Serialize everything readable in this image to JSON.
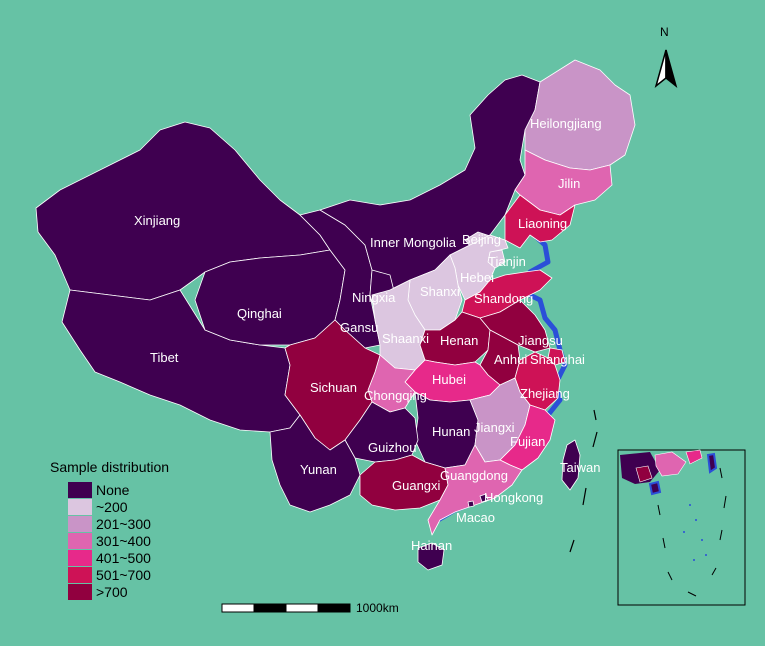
{
  "map": {
    "legend": {
      "title": "Sample distribution",
      "classes": [
        {
          "label": "None",
          "color": "#3f0050"
        },
        {
          "label": "~200",
          "color": "#dcc6e0"
        },
        {
          "label": "201~300",
          "color": "#c994c7"
        },
        {
          "label": "301~400",
          "color": "#df65b0"
        },
        {
          "label": "401~500",
          "color": "#e7298a"
        },
        {
          "label": "501~700",
          "color": "#ce1256"
        },
        {
          "label": ">700",
          "color": "#91003f"
        }
      ]
    },
    "scale_bar": {
      "label": "1000km"
    },
    "north_arrow": {
      "label": "N"
    },
    "coast_color": "#2b4fd8",
    "provinces": [
      {
        "name": "Xinjiang",
        "class": "None"
      },
      {
        "name": "Tibet",
        "class": "None"
      },
      {
        "name": "Qinghai",
        "class": "None"
      },
      {
        "name": "Gansu",
        "class": "None"
      },
      {
        "name": "Inner Mongolia",
        "class": "None"
      },
      {
        "name": "Ningxia",
        "class": "None"
      },
      {
        "name": "Heilongjiang",
        "class": "201~300"
      },
      {
        "name": "Jilin",
        "class": "301~400"
      },
      {
        "name": "Liaoning",
        "class": "501~700"
      },
      {
        "name": "Beijing",
        "class": "~200"
      },
      {
        "name": "Tianjin",
        "class": "~200"
      },
      {
        "name": "Hebei",
        "class": "~200"
      },
      {
        "name": "Shanxi",
        "class": "~200"
      },
      {
        "name": "Shandong",
        "class": "501~700"
      },
      {
        "name": "Shaanxi",
        "class": "~200"
      },
      {
        "name": "Henan",
        "class": ">700"
      },
      {
        "name": "Jiangsu",
        "class": ">700"
      },
      {
        "name": "Anhui",
        "class": ">700"
      },
      {
        "name": "Shanghai",
        "class": "501~700"
      },
      {
        "name": "Hubei",
        "class": "401~500"
      },
      {
        "name": "Chongqing",
        "class": "301~400"
      },
      {
        "name": "Sichuan",
        "class": ">700"
      },
      {
        "name": "Zhejiang",
        "class": "501~700"
      },
      {
        "name": "Hunan",
        "class": "None"
      },
      {
        "name": "Jiangxi",
        "class": "201~300"
      },
      {
        "name": "Fujian",
        "class": "401~500"
      },
      {
        "name": "Guizhou",
        "class": "None"
      },
      {
        "name": "Yunan",
        "class": "None"
      },
      {
        "name": "Guangxi",
        "class": ">700"
      },
      {
        "name": "Guangdong",
        "class": "301~400"
      },
      {
        "name": "Hongkong",
        "class": "None"
      },
      {
        "name": "Macao",
        "class": "None"
      },
      {
        "name": "Taiwan",
        "class": "None"
      },
      {
        "name": "Hainan",
        "class": "None"
      }
    ]
  }
}
